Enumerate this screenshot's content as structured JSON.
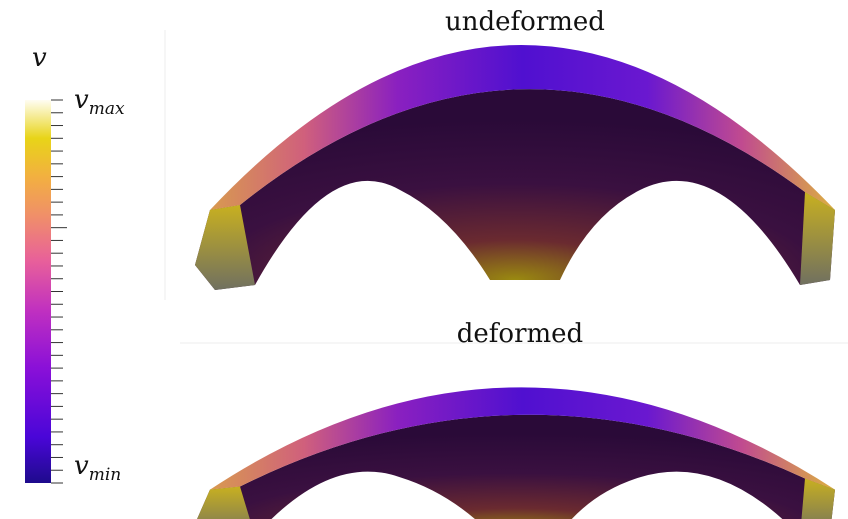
{
  "colorbar": {
    "symbol": "v",
    "max_label": {
      "base": "v",
      "sub": "max"
    },
    "min_label": {
      "base": "v",
      "sub": "min"
    }
  },
  "panels": [
    {
      "title": "undeformed"
    },
    {
      "title": "deformed"
    }
  ]
}
